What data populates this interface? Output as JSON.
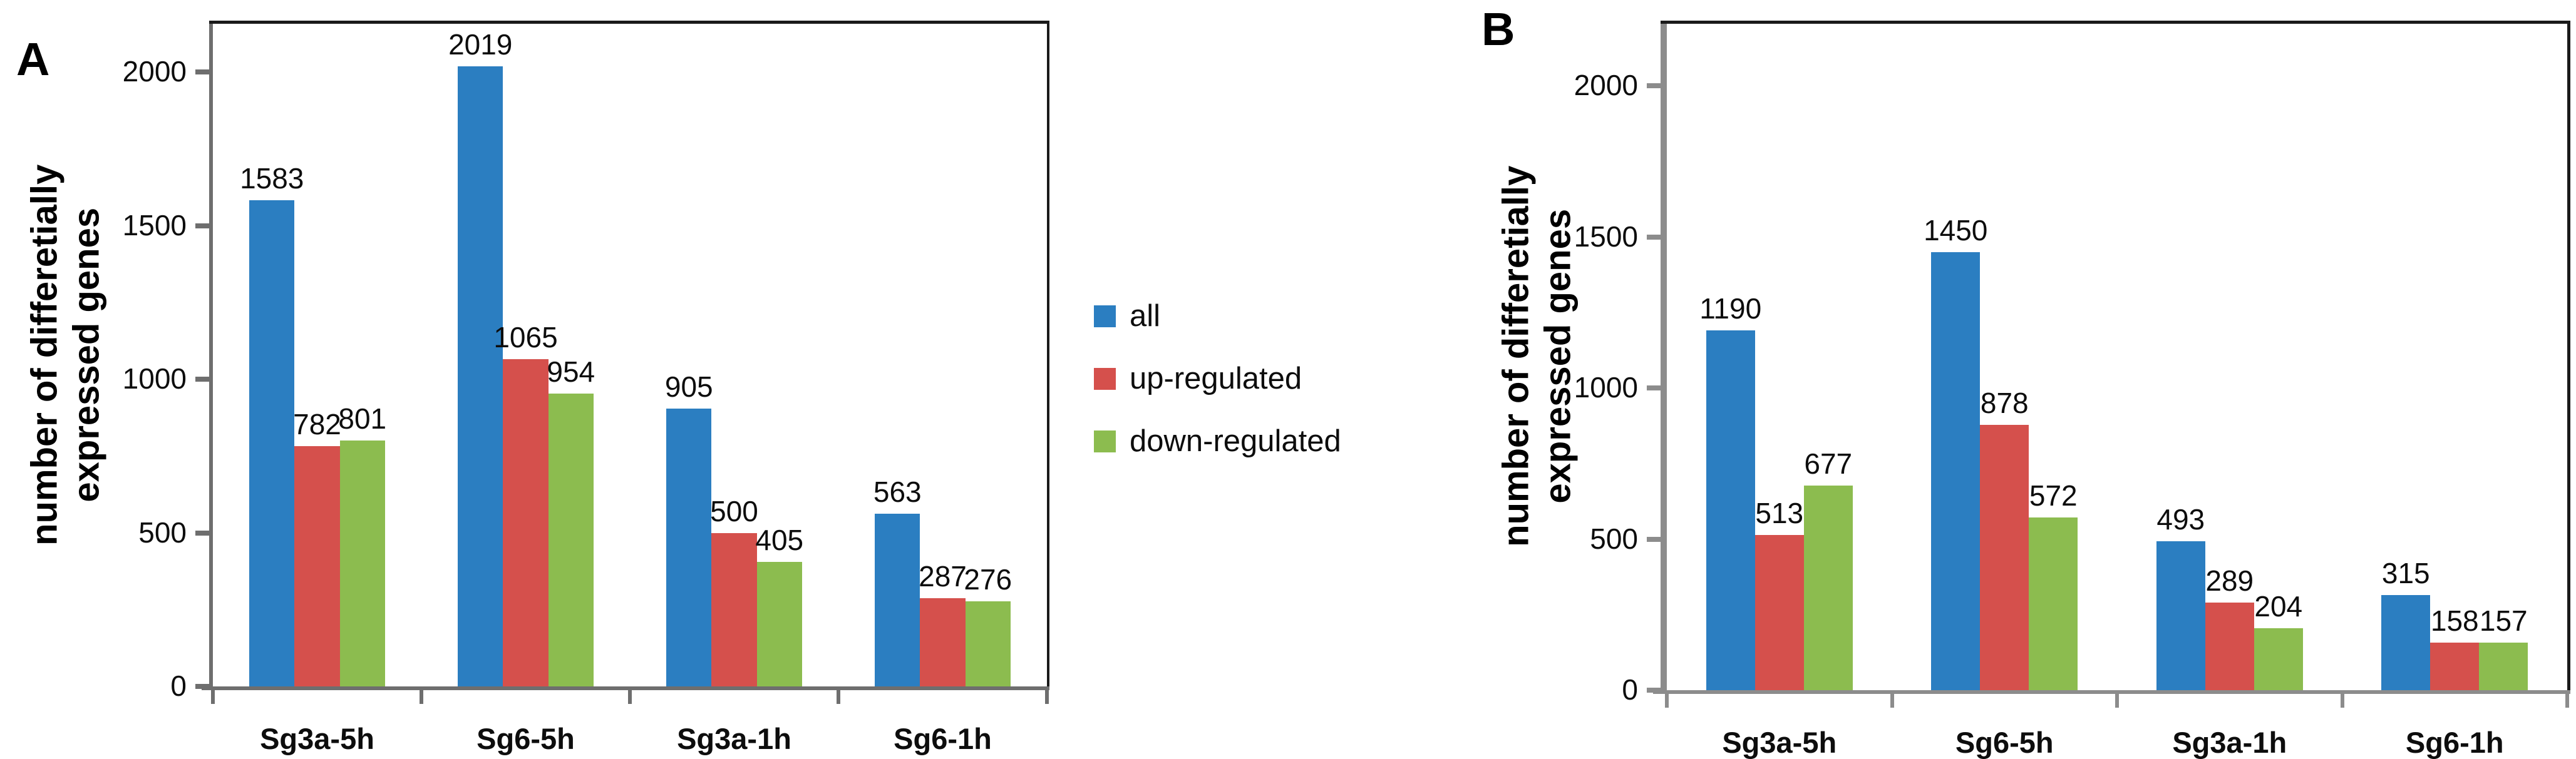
{
  "figure": {
    "background": "#ffffff",
    "description": "two-panel grouped bar chart figure"
  },
  "legend": {
    "position": "center, between panel A and panel B",
    "items": [
      {
        "label": "all",
        "color": "#2B7EC1"
      },
      {
        "label": "up-regulated",
        "color": "#D5504C"
      },
      {
        "label": "down-regulated",
        "color": "#8CBC4F"
      }
    ]
  },
  "chart_data": [
    {
      "type": "bar",
      "panel_label": "A",
      "title": "",
      "categories": [
        "Sg3a-5h",
        "Sg6-5h",
        "Sg3a-1h",
        "Sg6-1h"
      ],
      "series": [
        {
          "name": "all",
          "color": "#2B7EC1",
          "values": [
            1583,
            2019,
            905,
            563
          ]
        },
        {
          "name": "up-regulated",
          "color": "#D5504C",
          "values": [
            782,
            1065,
            500,
            287
          ]
        },
        {
          "name": "down-regulated",
          "color": "#8CBC4F",
          "values": [
            801,
            954,
            405,
            276
          ]
        }
      ],
      "xlabel": "",
      "ylabel": "number of differetially expressed genes",
      "ylabel_lines": [
        "number of differetially",
        "expressed genes"
      ],
      "yticks": [
        0,
        500,
        1000,
        1500,
        2000
      ],
      "ytick_labels": [
        "0",
        "500",
        "1000",
        "1500",
        "2000"
      ],
      "ylim": [
        0,
        2160
      ],
      "grid": false,
      "bar_value_labels": true
    },
    {
      "type": "bar",
      "panel_label": "B",
      "title": "",
      "categories": [
        "Sg3a-5h",
        "Sg6-5h",
        "Sg3a-1h",
        "Sg6-1h"
      ],
      "series": [
        {
          "name": "all",
          "color": "#2B7EC1",
          "values": [
            1190,
            1450,
            493,
            315
          ]
        },
        {
          "name": "up-regulated",
          "color": "#D5504C",
          "values": [
            513,
            878,
            289,
            158
          ]
        },
        {
          "name": "down-regulated",
          "color": "#8CBC4F",
          "values": [
            677,
            572,
            204,
            157
          ]
        }
      ],
      "xlabel": "",
      "ylabel": "number of differetially expressed genes",
      "ylabel_lines": [
        "number of differetially",
        "expressed genes"
      ],
      "yticks": [
        0,
        500,
        1000,
        1500,
        2000
      ],
      "ytick_labels": [
        "0",
        "500",
        "1000",
        "1500",
        "2000"
      ],
      "ylim": [
        0,
        2160
      ],
      "grid": false,
      "bar_value_labels": true
    }
  ],
  "colors": {
    "bar_blue": "#2B7EC1",
    "bar_red": "#D5504C",
    "bar_green": "#8CBC4F",
    "axis_gray_panel_a": "#6e6e6e",
    "axis_gray_panel_b": "#8c8c8c",
    "border_black": "#1a1a1a",
    "text": "#0d0d0d",
    "background": "#ffffff"
  }
}
